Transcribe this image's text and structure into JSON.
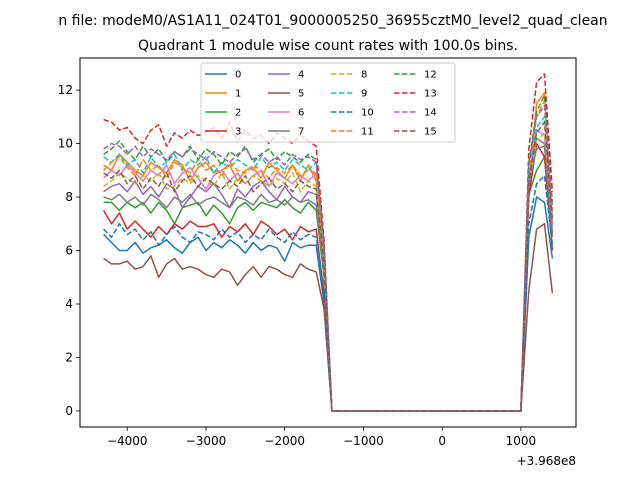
{
  "figure": {
    "suptitle": "n file: modeM0/AS1A11_024T01_9000005250_36955cztM0_level2_quad_clean",
    "title": "Quadrant 1 module wise count rates with 100.0s bins.",
    "x_offset_label": "+3.968e8"
  },
  "colors": {
    "background": "#ffffff",
    "series": [
      "#1f77b4",
      "#ff7f0e",
      "#2ca02c",
      "#d62728",
      "#9467bd",
      "#8c564b",
      "#e377c2",
      "#7f7f7f",
      "#bcbd22",
      "#17becf",
      "#1f77b4",
      "#ff7f0e",
      "#2ca02c",
      "#d62728",
      "#9467bd",
      "#8c564b"
    ]
  },
  "chart_data": {
    "type": "line",
    "title": "Quadrant 1 module wise count rates with 100.0s bins.",
    "xlabel": "",
    "ylabel": "",
    "x_offset": "+3.968e8",
    "xlim": [
      -4600,
      1700
    ],
    "ylim": [
      -0.6,
      13.2
    ],
    "xticks": [
      -4000,
      -3000,
      -2000,
      -1000,
      0,
      1000
    ],
    "xtick_labels": [
      "−4000",
      "−3000",
      "−2000",
      "−1000",
      "0",
      "1000"
    ],
    "yticks": [
      0,
      2,
      4,
      6,
      8,
      10,
      12
    ],
    "ytick_labels": [
      "0",
      "2",
      "4",
      "6",
      "8",
      "10",
      "12"
    ],
    "grid": false,
    "legend": {
      "placement": "upper center",
      "columns": 4
    },
    "x": [
      -4300,
      -4200,
      -4100,
      -4000,
      -3900,
      -3800,
      -3700,
      -3600,
      -3500,
      -3400,
      -3300,
      -3200,
      -3100,
      -3000,
      -2900,
      -2800,
      -2700,
      -2600,
      -2500,
      -2400,
      -2300,
      -2200,
      -2100,
      -2000,
      -1900,
      -1800,
      -1700,
      -1600,
      -1500,
      -1400,
      -1300,
      -1200,
      -1100,
      -1000,
      -900,
      -800,
      -700,
      -600,
      -500,
      -400,
      -300,
      -200,
      -100,
      0,
      100,
      200,
      300,
      400,
      500,
      600,
      700,
      800,
      900,
      1000,
      1100,
      1200,
      1300,
      1400
    ],
    "series": [
      {
        "name": "0",
        "style": "solid",
        "values": [
          6.6,
          6.3,
          6.0,
          6.0,
          6.3,
          5.9,
          6.1,
          6.2,
          6.4,
          6.1,
          5.9,
          6.3,
          6.5,
          6.0,
          6.3,
          6.1,
          6.4,
          6.2,
          5.9,
          6.3,
          6.0,
          6.2,
          6.1,
          5.6,
          6.3,
          6.1,
          6.2,
          6.2,
          4.0,
          0,
          0,
          0,
          0,
          0,
          0,
          0,
          0,
          0,
          0,
          0,
          0,
          0,
          0,
          0,
          0,
          0,
          0,
          0,
          0,
          0,
          0,
          0,
          0,
          0,
          6.5,
          8.0,
          7.8,
          5.7
        ]
      },
      {
        "name": "1",
        "style": "solid",
        "values": [
          9.2,
          9.0,
          9.6,
          9.3,
          9.0,
          8.8,
          9.3,
          9.1,
          8.9,
          9.4,
          9.2,
          8.6,
          9.1,
          9.3,
          8.9,
          9.0,
          9.2,
          8.6,
          9.0,
          9.1,
          8.7,
          9.3,
          9.0,
          8.7,
          9.2,
          8.6,
          9.2,
          8.6,
          5.6,
          0,
          0,
          0,
          0,
          0,
          0,
          0,
          0,
          0,
          0,
          0,
          0,
          0,
          0,
          0,
          0,
          0,
          0,
          0,
          0,
          0,
          0,
          0,
          0,
          0,
          8.3,
          11.5,
          11.9,
          7.0
        ]
      },
      {
        "name": "2",
        "style": "solid",
        "values": [
          7.8,
          7.8,
          7.5,
          7.8,
          7.6,
          7.8,
          7.4,
          7.8,
          7.5,
          7.0,
          7.6,
          7.7,
          7.8,
          7.3,
          7.7,
          7.4,
          7.0,
          7.6,
          7.8,
          7.5,
          7.8,
          7.7,
          7.6,
          7.9,
          7.6,
          7.4,
          7.8,
          7.5,
          5.0,
          0,
          0,
          0,
          0,
          0,
          0,
          0,
          0,
          0,
          0,
          0,
          0,
          0,
          0,
          0,
          0,
          0,
          0,
          0,
          0,
          0,
          0,
          0,
          0,
          0,
          8.1,
          9.0,
          9.5,
          6.7
        ]
      },
      {
        "name": "3",
        "style": "solid",
        "values": [
          7.5,
          7.0,
          7.4,
          6.8,
          7.1,
          6.8,
          6.5,
          6.9,
          6.6,
          7.0,
          6.8,
          7.1,
          6.9,
          6.9,
          7.0,
          6.5,
          6.9,
          6.7,
          7.0,
          6.6,
          7.1,
          6.9,
          6.6,
          6.8,
          6.4,
          6.9,
          6.7,
          6.8,
          4.3,
          0,
          0,
          0,
          0,
          0,
          0,
          0,
          0,
          0,
          0,
          0,
          0,
          0,
          0,
          0,
          0,
          0,
          0,
          0,
          0,
          0,
          0,
          0,
          0,
          0,
          8.0,
          10.0,
          9.5,
          6.0
        ]
      },
      {
        "name": "4",
        "style": "solid",
        "values": [
          8.2,
          8.4,
          8.5,
          8.2,
          8.6,
          8.1,
          8.4,
          8.0,
          8.5,
          8.3,
          7.6,
          8.0,
          8.4,
          8.2,
          8.5,
          8.1,
          7.6,
          8.3,
          8.0,
          8.4,
          8.6,
          8.2,
          7.9,
          8.4,
          8.0,
          7.8,
          8.2,
          8.1,
          5.3,
          0,
          0,
          0,
          0,
          0,
          0,
          0,
          0,
          0,
          0,
          0,
          0,
          0,
          0,
          0,
          0,
          0,
          0,
          0,
          0,
          0,
          0,
          0,
          0,
          0,
          8.4,
          10.2,
          10.0,
          6.5
        ]
      },
      {
        "name": "5",
        "style": "solid",
        "values": [
          5.7,
          5.5,
          5.5,
          5.6,
          5.3,
          5.4,
          5.8,
          5.0,
          5.5,
          5.7,
          5.3,
          5.4,
          5.3,
          5.1,
          5.0,
          5.3,
          5.2,
          4.7,
          5.1,
          5.4,
          5.0,
          5.4,
          5.3,
          5.1,
          5.0,
          5.5,
          5.3,
          5.2,
          3.8,
          0,
          0,
          0,
          0,
          0,
          0,
          0,
          0,
          0,
          0,
          0,
          0,
          0,
          0,
          0,
          0,
          0,
          0,
          0,
          0,
          0,
          0,
          0,
          0,
          0,
          4.5,
          6.8,
          7.0,
          4.4
        ]
      },
      {
        "name": "6",
        "style": "solid",
        "values": [
          8.7,
          9.0,
          8.8,
          9.2,
          8.9,
          8.6,
          9.0,
          8.8,
          9.2,
          8.5,
          8.9,
          9.1,
          8.7,
          8.3,
          8.8,
          9.0,
          8.6,
          8.9,
          8.5,
          8.8,
          9.0,
          8.4,
          8.9,
          8.7,
          8.5,
          8.8,
          8.6,
          8.9,
          5.8,
          0,
          0,
          0,
          0,
          0,
          0,
          0,
          0,
          0,
          0,
          0,
          0,
          0,
          0,
          0,
          0,
          0,
          0,
          0,
          0,
          0,
          0,
          0,
          0,
          0,
          8.7,
          10.5,
          10.3,
          6.9
        ]
      },
      {
        "name": "7",
        "style": "solid",
        "values": [
          8.0,
          7.9,
          8.1,
          7.8,
          8.0,
          7.7,
          8.1,
          7.9,
          7.6,
          8.0,
          7.8,
          8.1,
          7.7,
          7.9,
          8.0,
          7.8,
          7.6,
          8.0,
          7.9,
          7.7,
          8.1,
          7.8,
          7.9,
          7.7,
          8.0,
          7.8,
          7.9,
          7.7,
          5.2,
          0,
          0,
          0,
          0,
          0,
          0,
          0,
          0,
          0,
          0,
          0,
          0,
          0,
          0,
          0,
          0,
          0,
          0,
          0,
          0,
          0,
          0,
          0,
          0,
          0,
          8.5,
          9.8,
          9.9,
          6.6
        ]
      },
      {
        "name": "8",
        "style": "dashed",
        "values": [
          8.4,
          8.6,
          8.9,
          8.7,
          8.5,
          8.8,
          8.6,
          8.9,
          8.3,
          8.4,
          8.7,
          8.5,
          8.8,
          8.6,
          8.4,
          8.9,
          8.3,
          8.7,
          8.5,
          8.8,
          8.6,
          8.4,
          8.7,
          8.5,
          8.9,
          8.2,
          8.6,
          8.4,
          5.6,
          0,
          0,
          0,
          0,
          0,
          0,
          0,
          0,
          0,
          0,
          0,
          0,
          0,
          0,
          0,
          0,
          0,
          0,
          0,
          0,
          0,
          0,
          0,
          0,
          0,
          8.6,
          10.1,
          10.4,
          7.2
        ]
      },
      {
        "name": "9",
        "style": "dashed",
        "values": [
          9.5,
          9.3,
          9.6,
          9.2,
          9.4,
          8.9,
          9.5,
          9.1,
          9.3,
          9.6,
          9.0,
          9.4,
          9.2,
          9.5,
          8.9,
          9.3,
          9.1,
          9.4,
          9.2,
          9.0,
          9.5,
          9.1,
          9.3,
          9.0,
          9.4,
          9.2,
          9.0,
          9.3,
          6.0,
          0,
          0,
          0,
          0,
          0,
          0,
          0,
          0,
          0,
          0,
          0,
          0,
          0,
          0,
          0,
          0,
          0,
          0,
          0,
          0,
          0,
          0,
          0,
          0,
          0,
          8.8,
          10.6,
          11.0,
          7.4
        ]
      },
      {
        "name": "10",
        "style": "dashed",
        "values": [
          6.8,
          6.5,
          7.0,
          6.6,
          6.8,
          6.4,
          6.7,
          6.2,
          6.6,
          6.9,
          6.5,
          6.3,
          6.7,
          6.6,
          6.4,
          6.8,
          6.5,
          6.7,
          6.3,
          6.6,
          6.4,
          6.8,
          6.5,
          6.3,
          6.7,
          6.4,
          6.6,
          6.5,
          4.5,
          0,
          0,
          0,
          0,
          0,
          0,
          0,
          0,
          0,
          0,
          0,
          0,
          0,
          0,
          0,
          0,
          0,
          0,
          0,
          0,
          0,
          0,
          0,
          0,
          0,
          7.0,
          8.5,
          8.8,
          6.2
        ]
      },
      {
        "name": "11",
        "style": "dashed",
        "values": [
          9.0,
          9.3,
          9.5,
          9.1,
          8.8,
          9.4,
          9.0,
          9.2,
          8.7,
          9.3,
          9.1,
          8.9,
          9.4,
          9.0,
          9.2,
          8.8,
          9.3,
          9.0,
          8.9,
          9.2,
          9.0,
          8.7,
          9.1,
          8.9,
          9.2,
          8.8,
          9.0,
          8.9,
          5.9,
          0,
          0,
          0,
          0,
          0,
          0,
          0,
          0,
          0,
          0,
          0,
          0,
          0,
          0,
          0,
          0,
          0,
          0,
          0,
          0,
          0,
          0,
          0,
          0,
          0,
          9.0,
          11.0,
          11.6,
          7.5
        ]
      },
      {
        "name": "12",
        "style": "dashed",
        "values": [
          9.6,
          9.8,
          10.1,
          9.7,
          9.4,
          9.9,
          9.5,
          9.8,
          9.3,
          9.7,
          9.5,
          9.9,
          9.4,
          9.8,
          9.6,
          9.2,
          9.7,
          9.5,
          9.9,
          9.3,
          9.6,
          9.8,
          9.4,
          9.7,
          9.5,
          9.3,
          9.6,
          9.4,
          6.2,
          0,
          0,
          0,
          0,
          0,
          0,
          0,
          0,
          0,
          0,
          0,
          0,
          0,
          0,
          0,
          0,
          0,
          0,
          0,
          0,
          0,
          0,
          0,
          0,
          0,
          9.3,
          11.2,
          11.8,
          7.8
        ]
      },
      {
        "name": "13",
        "style": "dashed",
        "values": [
          10.9,
          10.8,
          10.5,
          10.6,
          10.2,
          10.0,
          10.5,
          10.7,
          9.9,
          10.4,
          10.2,
          10.5,
          10.3,
          10.4,
          10.6,
          10.2,
          10.8,
          10.1,
          10.5,
          10.2,
          10.3,
          10.0,
          10.4,
          10.2,
          10.0,
          10.3,
          10.1,
          9.9,
          6.4,
          0,
          0,
          0,
          0,
          0,
          0,
          0,
          0,
          0,
          0,
          0,
          0,
          0,
          0,
          0,
          0,
          0,
          0,
          0,
          0,
          0,
          0,
          0,
          0,
          0,
          9.8,
          12.3,
          12.6,
          8.2
        ]
      },
      {
        "name": "14",
        "style": "dashed",
        "values": [
          9.8,
          10.0,
          9.9,
          9.6,
          9.9,
          9.5,
          9.8,
          9.6,
          9.4,
          9.7,
          9.5,
          9.8,
          9.6,
          9.4,
          9.7,
          9.5,
          9.3,
          9.6,
          9.8,
          9.4,
          9.6,
          9.3,
          9.5,
          9.2,
          9.6,
          9.4,
          9.5,
          9.3,
          6.1,
          0,
          0,
          0,
          0,
          0,
          0,
          0,
          0,
          0,
          0,
          0,
          0,
          0,
          0,
          0,
          0,
          0,
          0,
          0,
          0,
          0,
          0,
          0,
          0,
          0,
          9.2,
          11.0,
          11.4,
          7.6
        ]
      },
      {
        "name": "15",
        "style": "dashed",
        "values": [
          8.9,
          8.7,
          9.0,
          8.5,
          8.8,
          8.3,
          8.7,
          8.4,
          8.9,
          8.2,
          8.6,
          8.8,
          8.4,
          8.7,
          8.5,
          8.3,
          8.6,
          8.4,
          8.8,
          8.2,
          8.5,
          8.7,
          8.3,
          8.5,
          8.2,
          8.6,
          8.4,
          8.3,
          5.5,
          0,
          0,
          0,
          0,
          0,
          0,
          0,
          0,
          0,
          0,
          0,
          0,
          0,
          0,
          0,
          0,
          0,
          0,
          0,
          0,
          0,
          0,
          0,
          0,
          0,
          8.5,
          10.4,
          10.8,
          7.1
        ]
      }
    ]
  }
}
